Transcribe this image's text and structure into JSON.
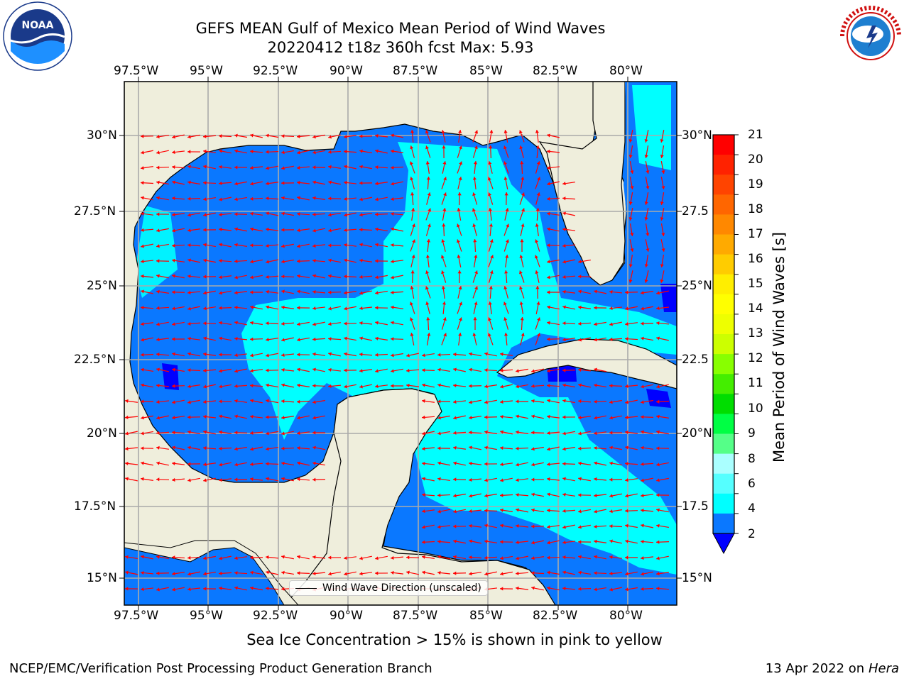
{
  "header": {
    "title_line1": "GEFS MEAN Gulf of Mexico Mean Period of Wind Waves",
    "title_line2": "20220412 t18z 360h fcst   Max: 5.93"
  },
  "logos": {
    "left": "NOAA",
    "left_ring": "NATIONAL OCEANIC AND ATMOSPHERIC ADMINISTRATION · U.S. DEPARTMENT OF COMMERCE",
    "right_ring": "NATIONAL WEATHER SERVICE"
  },
  "map": {
    "lon_labels": [
      "97.5°W",
      "95°W",
      "92.5°W",
      "90°W",
      "87.5°W",
      "85°W",
      "82.5°W",
      "80°W"
    ],
    "lat_labels_left": [
      "30°N",
      "27.5°N",
      "25°N",
      "22.5°N",
      "20°N",
      "17.5°N",
      "15°N"
    ],
    "lat_labels_right": [
      "30°N",
      "27.5",
      "25°N",
      "22.5",
      "20°N",
      "17.5",
      "15°N"
    ],
    "colors": {
      "land": "#efeedc",
      "water_low": "#0a78ff",
      "water_mid": "#00ffff",
      "water_deep": "#0000ff",
      "arrow": "#ff0000",
      "grid": "#aaaaaa"
    }
  },
  "legend": {
    "label": "Wind Wave Direction (unscaled)"
  },
  "colorbar": {
    "title": "Mean Period of Wind Waves [s]",
    "ticks": [
      "21",
      "20",
      "19",
      "18",
      "17",
      "16",
      "15",
      "14",
      "13",
      "12",
      "11",
      "10",
      "9",
      "8",
      "7",
      "6",
      "5",
      "4",
      "3",
      "2"
    ],
    "tick_labels_shown": [
      "21",
      "20",
      "19",
      "18",
      "17",
      "16",
      "15",
      "14",
      "13",
      "12",
      "11",
      "10",
      "9",
      "8",
      "6",
      "4",
      "2"
    ],
    "colors": [
      "#ff0000",
      "#ff2200",
      "#ff4400",
      "#ff6600",
      "#ff8800",
      "#ffaa00",
      "#ffcc00",
      "#ffee00",
      "#ffff00",
      "#eeff00",
      "#ccff00",
      "#88ff00",
      "#44ee00",
      "#00dd00",
      "#00ff44",
      "#55ff88",
      "#aaffff",
      "#55ffff",
      "#00ffff",
      "#0a78ff"
    ],
    "under_color": "#0000ff"
  },
  "footer": {
    "note": "Sea Ice Concentration > 15% is shown in pink to yellow",
    "left": "NCEP/EMC/Verification Post Processing Product Generation Branch",
    "right_prefix": "13 Apr 2022 on",
    "right_host": "Hera"
  }
}
